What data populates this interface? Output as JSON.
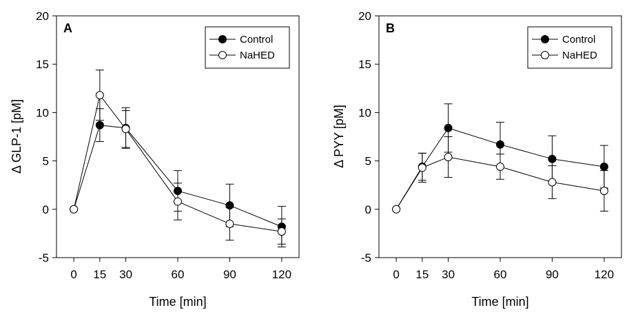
{
  "colors": {
    "axis": "#000000",
    "filled_marker": "#000000",
    "open_marker": "#ffffff"
  },
  "chart_data": [
    {
      "type": "line",
      "panel_label": "A",
      "xlabel": "Time [min]",
      "ylabel": "Δ GLP-1 [pM]",
      "x": [
        0,
        15,
        30,
        60,
        90,
        120
      ],
      "x_tick_labels": [
        "0",
        "15",
        "30",
        "60",
        "90",
        "120"
      ],
      "xlim": [
        -10,
        130
      ],
      "ylim": [
        -5,
        20
      ],
      "y_ticks": [
        -5,
        0,
        5,
        10,
        15,
        20
      ],
      "y_tick_labels": [
        "-5",
        "0",
        "5",
        "10",
        "15",
        "20"
      ],
      "legend_position": "top-right",
      "series": [
        {
          "name": "Control",
          "marker": "filled",
          "values": [
            0,
            8.7,
            8.4,
            1.9,
            0.4,
            -1.8
          ],
          "errors": [
            0,
            1.7,
            2.1,
            2.1,
            2.2,
            2.1
          ]
        },
        {
          "name": "NaHED",
          "marker": "open",
          "values": [
            0,
            11.8,
            8.3,
            0.8,
            -1.5,
            -2.3
          ],
          "errors": [
            0,
            2.6,
            1.9,
            1.9,
            1.7,
            1.3
          ]
        }
      ]
    },
    {
      "type": "line",
      "panel_label": "B",
      "xlabel": "Time [min]",
      "ylabel": "Δ PYY [pM]",
      "x": [
        0,
        15,
        30,
        60,
        90,
        120
      ],
      "x_tick_labels": [
        "0",
        "15",
        "30",
        "60",
        "90",
        "120"
      ],
      "xlim": [
        -10,
        130
      ],
      "ylim": [
        -5,
        20
      ],
      "y_ticks": [
        -5,
        0,
        5,
        10,
        15,
        20
      ],
      "y_tick_labels": [
        "-5",
        "0",
        "5",
        "10",
        "15",
        "20"
      ],
      "legend_position": "top-right",
      "series": [
        {
          "name": "Control",
          "marker": "filled",
          "values": [
            0,
            4.4,
            8.4,
            6.7,
            5.2,
            4.4
          ],
          "errors": [
            0,
            1.4,
            2.5,
            2.3,
            2.4,
            2.2
          ]
        },
        {
          "name": "NaHED",
          "marker": "open",
          "values": [
            0,
            4.3,
            5.4,
            4.4,
            2.8,
            1.9
          ],
          "errors": [
            0,
            1.5,
            2.1,
            1.3,
            1.7,
            2.1
          ]
        }
      ]
    }
  ]
}
